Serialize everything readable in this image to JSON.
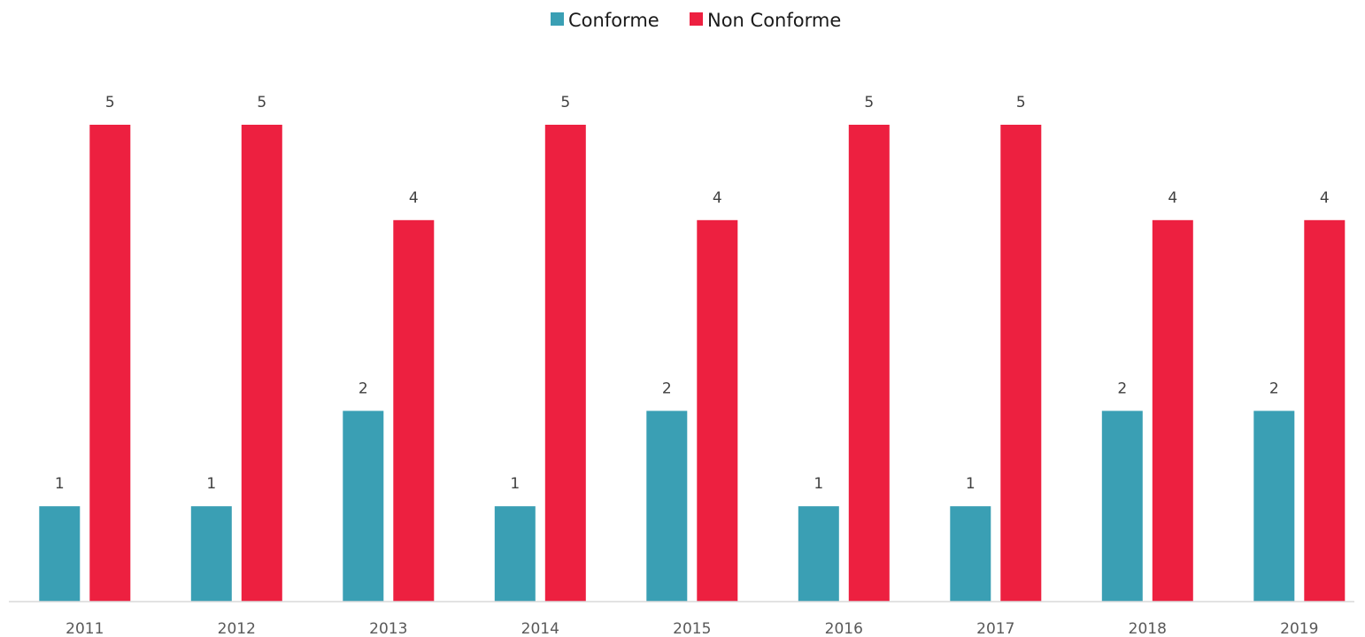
{
  "chart_data": {
    "type": "bar",
    "categories": [
      "2011",
      "2012",
      "2013",
      "2014",
      "2015",
      "2016",
      "2017",
      "2018",
      "2019"
    ],
    "series": [
      {
        "name": "Conforme",
        "values": [
          1,
          1,
          2,
          1,
          2,
          1,
          1,
          2,
          2
        ],
        "color": "#3a9fb4"
      },
      {
        "name": "Non Conforme",
        "values": [
          5,
          5,
          4,
          5,
          4,
          5,
          5,
          4,
          4
        ],
        "color": "#ed2040"
      }
    ],
    "title": "",
    "xlabel": "",
    "ylabel": "",
    "ylim": [
      0,
      5
    ],
    "grid": false,
    "legend": "top-center",
    "data_labels": true
  }
}
